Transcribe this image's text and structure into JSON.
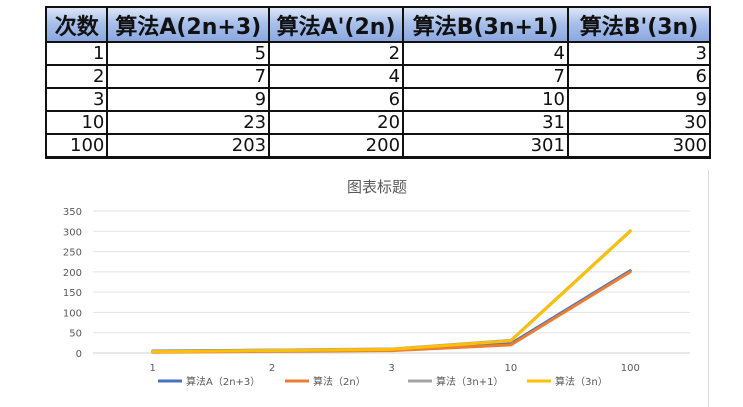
{
  "table": {
    "headers": [
      "次数",
      "算法A(2n+3)",
      "算法A'(2n)",
      "算法B(3n+1)",
      "算法B'(3n)"
    ],
    "rows": [
      [
        "1",
        "5",
        "2",
        "4",
        "3"
      ],
      [
        "2",
        "7",
        "4",
        "7",
        "6"
      ],
      [
        "3",
        "9",
        "6",
        "10",
        "9"
      ],
      [
        "10",
        "23",
        "20",
        "31",
        "30"
      ],
      [
        "100",
        "203",
        "200",
        "301",
        "300"
      ]
    ]
  },
  "chart_data": {
    "type": "line",
    "title": "图表标题",
    "categories": [
      "1",
      "2",
      "3",
      "10",
      "100"
    ],
    "ylim": [
      0,
      350
    ],
    "yticks": [
      0,
      50,
      100,
      150,
      200,
      250,
      300,
      350
    ],
    "grid": true,
    "legend": "bottom",
    "series": [
      {
        "name": "算法A（2n+3）",
        "values": [
          5,
          7,
          9,
          23,
          203
        ],
        "color": "#4472c4"
      },
      {
        "name": "算法（2n）",
        "values": [
          2,
          4,
          6,
          20,
          200
        ],
        "color": "#ed7d31"
      },
      {
        "name": "算法（3n+1）",
        "values": [
          4,
          7,
          10,
          31,
          301
        ],
        "color": "#a5a5a5"
      },
      {
        "name": "算法（3n）",
        "values": [
          3,
          6,
          9,
          30,
          300
        ],
        "color": "#ffc000"
      }
    ]
  }
}
